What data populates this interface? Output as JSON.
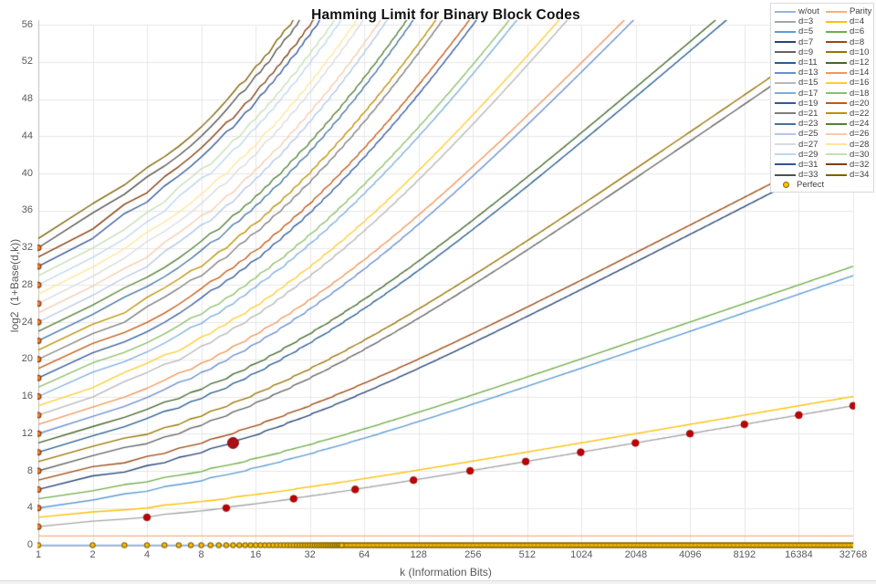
{
  "chart_data": {
    "type": "line",
    "title": "Hamming Limit for Binary Block Codes",
    "xlabel": "k (Information Bits)",
    "ylabel": "log2  (1+Base(d,k))",
    "x_scale": "log2",
    "xlim": [
      1,
      32768
    ],
    "ylim": [
      0,
      56
    ],
    "x_ticks": [
      1,
      2,
      4,
      8,
      16,
      32,
      64,
      128,
      256,
      512,
      1024,
      2048,
      4096,
      8192,
      16384,
      32768
    ],
    "y_ticks": [
      0,
      4,
      8,
      12,
      16,
      20,
      24,
      28,
      32,
      36,
      40,
      44,
      48,
      52,
      56
    ],
    "grid": true,
    "legend_position": "top-right",
    "bound_rule": "y(k,d) = log2(V(n,t)) (+1 if d even), V(n,t) = sum_{i=0..t} C(n,i), t = floor((d-1)/2), n = smallest blocklength with n-k >= log2(V(n,t)); every curve starts at (1, d-1)",
    "series": [
      {
        "label": "w/out",
        "d": 1,
        "color": "#97B4DE",
        "y_at_k1": 0,
        "y_at_k32768": 0
      },
      {
        "label": "Parity",
        "d": 2,
        "color": "#F4B183",
        "y_at_k1": 1,
        "y_at_k32768": 1
      },
      {
        "label": "d=3",
        "d": 3,
        "color": "#A5A5A5",
        "y_at_k1": 2,
        "y_at_k32768": 15.0
      },
      {
        "label": "d=4",
        "d": 4,
        "color": "#FFC000",
        "y_at_k1": 3,
        "y_at_k32768": 16.0
      },
      {
        "label": "d=5",
        "d": 5,
        "color": "#5B9BD5",
        "y_at_k1": 4,
        "y_at_k32768": 29.0
      },
      {
        "label": "d=6",
        "d": 6,
        "color": "#70AD47",
        "y_at_k1": 5,
        "y_at_k32768": 30.0
      },
      {
        "label": "d=7",
        "d": 7,
        "color": "#264478",
        "y_at_k1": 6,
        "y_at_k32768": 42.4
      },
      {
        "label": "d=8",
        "d": 8,
        "color": "#9E480E",
        "y_at_k1": 7,
        "y_at_k32768": 43.4
      },
      {
        "label": "d=9",
        "d": 9,
        "color": "#636363",
        "y_at_k1": 8,
        "y_at_k32768": 55.4
      },
      {
        "label": "d=10",
        "d": 10,
        "color": "#997300",
        "y_at_k1": 9,
        "y_at_k32768": 56.4
      },
      {
        "label": "d=11",
        "d": 11,
        "color": "#255E91",
        "y_at_k1": 10,
        "exits_top": true
      },
      {
        "label": "d=12",
        "d": 12,
        "color": "#43682B",
        "y_at_k1": 11,
        "exits_top": true
      },
      {
        "label": "d=13",
        "d": 13,
        "color": "#698ED0",
        "y_at_k1": 12,
        "exits_top": true
      },
      {
        "label": "d=14",
        "d": 14,
        "color": "#F1975A",
        "y_at_k1": 13,
        "exits_top": true
      },
      {
        "label": "d=15",
        "d": 15,
        "color": "#B7B7B7",
        "y_at_k1": 14,
        "exits_top": true
      },
      {
        "label": "d=16",
        "d": 16,
        "color": "#FFCD33",
        "y_at_k1": 15,
        "exits_top": true
      },
      {
        "label": "d=17",
        "d": 17,
        "color": "#7CAFDD",
        "y_at_k1": 16,
        "exits_top": true
      },
      {
        "label": "d=18",
        "d": 18,
        "color": "#8CC168",
        "y_at_k1": 17,
        "exits_top": true
      },
      {
        "label": "d=19",
        "d": 19,
        "color": "#335AA1",
        "y_at_k1": 18,
        "exits_top": true
      },
      {
        "label": "d=20",
        "d": 20,
        "color": "#C55A11",
        "y_at_k1": 19,
        "exits_top": true
      },
      {
        "label": "d=21",
        "d": 21,
        "color": "#7C7C7C",
        "y_at_k1": 20,
        "exits_top": true
      },
      {
        "label": "d=22",
        "d": 22,
        "color": "#BF9000",
        "y_at_k1": 21,
        "exits_top": true
      },
      {
        "label": "d=23",
        "d": 23,
        "color": "#4474A0",
        "y_at_k1": 22,
        "exits_top": true
      },
      {
        "label": "d=24",
        "d": 24,
        "color": "#548235",
        "y_at_k1": 23,
        "exits_top": true
      },
      {
        "label": "d=25",
        "d": 25,
        "color": "#B4C7E7",
        "y_at_k1": 24,
        "exits_top": true
      },
      {
        "label": "d=26",
        "d": 26,
        "color": "#F8CBAD",
        "y_at_k1": 25,
        "exits_top": true
      },
      {
        "label": "d=27",
        "d": 27,
        "color": "#DBDBDB",
        "y_at_k1": 26,
        "exits_top": true
      },
      {
        "label": "d=28",
        "d": 28,
        "color": "#FFE699",
        "y_at_k1": 27,
        "exits_top": true
      },
      {
        "label": "d=29",
        "d": 29,
        "color": "#BDD7EE",
        "y_at_k1": 28,
        "exits_top": true
      },
      {
        "label": "d=30",
        "d": 30,
        "color": "#C5E0B4",
        "y_at_k1": 29,
        "exits_top": true
      },
      {
        "label": "d=31",
        "d": 31,
        "color": "#2F5597",
        "y_at_k1": 30,
        "exits_top": true
      },
      {
        "label": "d=32",
        "d": 32,
        "color": "#843C0C",
        "y_at_k1": 31,
        "exits_top": true
      },
      {
        "label": "d=33",
        "d": 33,
        "color": "#525252",
        "y_at_k1": 32,
        "exits_top": true
      },
      {
        "label": "d=34",
        "d": 34,
        "color": "#7F6000",
        "y_at_k1": 33,
        "exits_top": true
      }
    ],
    "perfect_markers": {
      "label": "Perfect",
      "axis_row": {
        "y": 0,
        "k_min": 1,
        "k_max": 32768,
        "step": 1,
        "fill": "#FFC000",
        "ring": "#8A6A04"
      },
      "repetition_column": {
        "k": 1,
        "y_values": [
          2,
          4,
          6,
          8,
          10,
          12,
          14,
          16,
          18,
          20,
          22,
          24,
          26,
          28,
          30,
          32
        ],
        "fill": "#ED7D31",
        "ring": "#843C0C"
      }
    },
    "highlight_points": {
      "hamming_perfect_codes": {
        "on_series": "d=3",
        "color": "#C00000",
        "points": [
          [
            4,
            3
          ],
          [
            11,
            4
          ],
          [
            26,
            5
          ],
          [
            57,
            6
          ],
          [
            120,
            7
          ],
          [
            247,
            8
          ],
          [
            502,
            9
          ],
          [
            1013,
            10
          ],
          [
            2036,
            11
          ],
          [
            4083,
            12
          ],
          [
            8178,
            13
          ],
          [
            16369,
            14
          ],
          [
            32752,
            15
          ]
        ]
      },
      "golay_code": {
        "on_series": "d=7",
        "color": "#A81014",
        "point": [
          12,
          11
        ],
        "size": "large"
      }
    }
  }
}
